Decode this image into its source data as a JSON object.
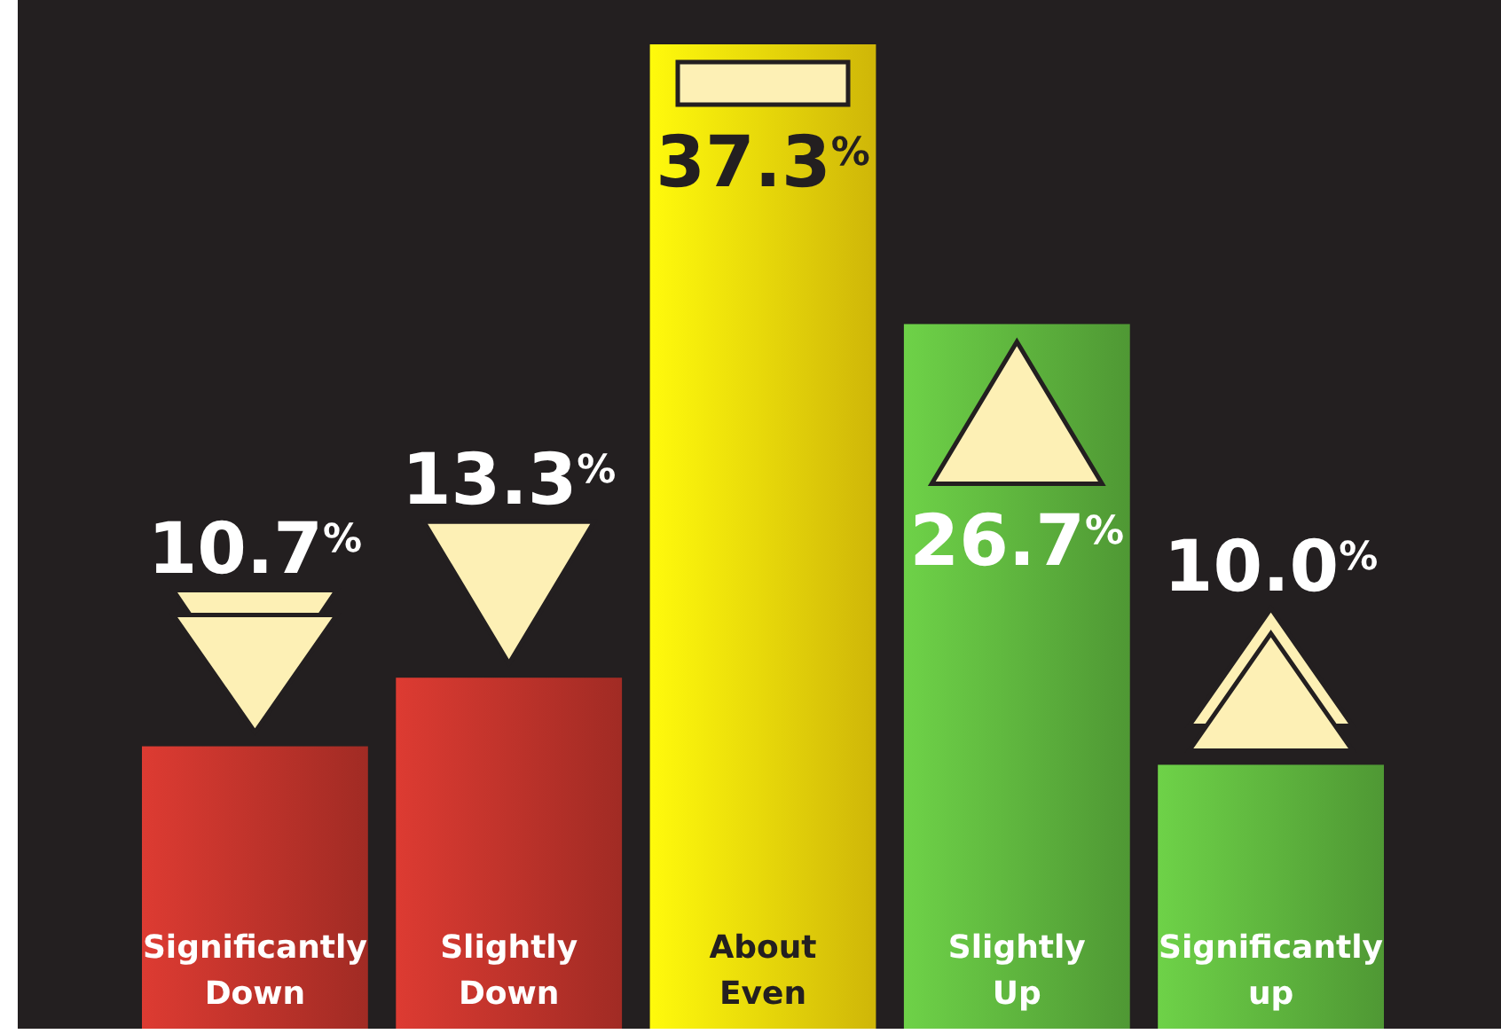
{
  "chart_data": {
    "type": "bar",
    "relative": false,
    "categories": [
      "Significantly Down",
      "Slightly Down",
      "About Even",
      "Slightly Up",
      "Significantly up"
    ],
    "values": [
      10.7,
      13.3,
      37.3,
      26.7,
      10.0
    ],
    "value_labels": [
      "10.7$^{%}$",
      "13.3$^{%}$",
      "37.3$^{%}$",
      "26.7$^{%}$",
      "10.0$^{%}$"
    ],
    "colors": [
      "#c0332b",
      "#c0332b",
      "#f7d90a",
      "#5fb63e",
      "#5fb63e"
    ],
    "ylim": [
      0,
      37.3
    ]
  }
}
